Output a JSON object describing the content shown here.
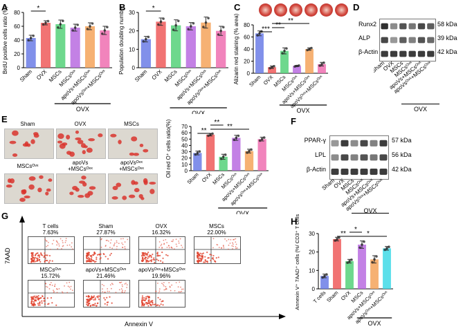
{
  "panel_labels": {
    "A": "A",
    "B": "B",
    "C": "C",
    "D": "D",
    "E": "E",
    "F": "F",
    "G": "G",
    "H": "H"
  },
  "groups_full": [
    "Sham",
    "OVX",
    "MSCs",
    "MSCsᴼᵛˣ",
    "apoVs+MSCsᴼᵛˣ",
    "apoVsᴼᵛˣ+MSCsᴼᵛˣ"
  ],
  "ovx_label": "OVX",
  "colors": {
    "sham": "#6b7de6",
    "ovx": "#ee5a5a",
    "mscs": "#55d179",
    "mscs_ovx": "#b96be0",
    "apovs_mscs_ovx": "#f5a35a",
    "apovs_ovx_mscs_ovx": "#ee6fb0",
    "tcells": "#6b7de6",
    "h_last": "#3fd9e6"
  },
  "chart_data": [
    {
      "id": "A",
      "type": "bar",
      "ylabel": "BrdU positive cells ratio (%)",
      "ylim": [
        0,
        80
      ],
      "yticks": [
        "0",
        "20",
        "40",
        "60",
        "80"
      ],
      "categories": [
        "Sham",
        "OVX",
        "MSCs",
        "MSCsᴼᵛˣ",
        "apoVs+MSCsᴼᵛˣ",
        "apoVsᴼᵛˣ+MSCsᴼᵛˣ"
      ],
      "values": [
        43,
        65,
        63,
        58,
        60,
        54
      ],
      "errors": [
        4,
        3,
        6,
        5,
        5,
        6
      ],
      "sig": [
        {
          "from": 0,
          "to": 1,
          "label": "*"
        }
      ],
      "ovx_line_from": 2
    },
    {
      "id": "B",
      "type": "bar",
      "ylabel": "Population doubling number",
      "ylim": [
        0,
        30
      ],
      "yticks": [
        "0",
        "10",
        "20",
        "30"
      ],
      "categories": [
        "Sham",
        "OVX",
        "MSCs",
        "MSCsᴼᵛˣ",
        "apoVs+MSCsᴼᵛˣ",
        "apoVsᴼᵛˣ+MSCsᴼᵛˣ"
      ],
      "values": [
        15.5,
        25,
        23,
        22.5,
        24.5,
        20
      ],
      "errors": [
        1.5,
        2,
        3,
        2,
        3,
        2.5
      ],
      "sig": [
        {
          "from": 0,
          "to": 1,
          "label": "*"
        }
      ],
      "ovx_line_from": 2
    },
    {
      "id": "C",
      "type": "bar",
      "ylabel": "Alizarin red staining (% area)",
      "ylim": [
        0,
        80
      ],
      "yticks": [
        "0",
        "20",
        "40",
        "60",
        "80"
      ],
      "categories": [
        "Sham",
        "OVX",
        "MSCs",
        "MSCsᴼᵛˣ",
        "apoVs+MSCsᴼᵛˣ",
        "apoVsᴼᵛˣ+MSCsᴼᵛˣ"
      ],
      "values": [
        66,
        10,
        37,
        12,
        40,
        15
      ],
      "errors": [
        4,
        2,
        5,
        1,
        2,
        3
      ],
      "sig": [
        {
          "from": 0,
          "to": 1,
          "label": "***",
          "tier": 2
        },
        {
          "from": 1,
          "to": 2,
          "label": "**",
          "tier": 1
        },
        {
          "from": 1,
          "to": 4,
          "label": "**",
          "tier": 0
        }
      ],
      "ovx_line_from": 2
    },
    {
      "id": "E",
      "type": "bar",
      "ylabel": "Oil red O⁺ cells ratio(%)",
      "ylim": [
        0,
        70
      ],
      "yticks": [
        "0",
        "10",
        "20",
        "30",
        "40",
        "50",
        "60",
        "70"
      ],
      "categories": [
        "Sham",
        "OVX",
        "MSCs",
        "MSCsᴼᵛˣ",
        "apoVs+MSCsᴼᵛˣ",
        "apoVsᴼᵛˣ+MSCsᴼᵛˣ"
      ],
      "values": [
        28,
        57,
        22,
        52,
        31,
        50
      ],
      "errors": [
        3,
        2,
        4,
        4,
        3,
        3
      ],
      "sig": [
        {
          "from": 0,
          "to": 1,
          "label": "**",
          "tier": 2
        },
        {
          "from": 1,
          "to": 2,
          "label": "**",
          "tier": 0
        },
        {
          "from": 1,
          "to": 4,
          "label": "**",
          "tier": 1
        }
      ],
      "ovx_line_from": 2
    },
    {
      "id": "H",
      "type": "bar",
      "ylabel": "Annexin V⁺ 7AAD⁺ cells (%/ CD3⁺ T cells)",
      "ylim": [
        0,
        30
      ],
      "yticks": [
        "0",
        "10",
        "20",
        "30"
      ],
      "categories": [
        "T cells",
        "Sham",
        "OVX",
        "MSCs",
        "apoVs+MSCsᴼᵛˣ",
        "apoVsᴼᵛˣ+MSCsᴼᵛˣ"
      ],
      "values": [
        7,
        27,
        15,
        24,
        16,
        22
      ],
      "errors": [
        1,
        1,
        1,
        2,
        2,
        1
      ],
      "sig": [
        {
          "from": 1,
          "to": 2,
          "label": "**",
          "tier": 1
        },
        {
          "from": 2,
          "to": 3,
          "label": "*",
          "tier": 0
        },
        {
          "from": 2,
          "to": 5,
          "label": "*",
          "tier": 1
        }
      ],
      "ovx_line_from": 3
    }
  ],
  "panel_D": {
    "bands": [
      "Runx2",
      "ALP",
      "β-Actin"
    ],
    "sizes": [
      "58 kDa",
      "39 kDa",
      "42 kDa"
    ],
    "lanes": [
      "Sham",
      "OVX",
      "MSCs",
      "MSCsᴼᵛˣ",
      "apoVs+MSCsᴼᵛˣ",
      "apoVsᴼᵛˣ+MSCsᴼᵛˣ"
    ],
    "ovx_label": "OVX"
  },
  "panel_F": {
    "bands": [
      "PPAR-γ",
      "LPL",
      "β-Actin"
    ],
    "sizes": [
      "57 kDa",
      "56 kDa",
      "42 kDa"
    ],
    "lanes": [
      "Sham",
      "OVX",
      "MSCs",
      "MSCsᴼᵛˣ",
      "apoVs+MSCsᴼᵛˣ",
      "apoVsᴼᵛˣ+MSCsᴼᵛˣ"
    ],
    "ovx_label": "OVX"
  },
  "panel_E_images": {
    "row1": [
      "Sham",
      "OVX",
      "MSCs"
    ],
    "row2": [
      "MSCsᴼᵛˣ",
      "apoVs\n+MSCsᴼᵛˣ",
      "apoVsᴼᵛˣ\n+MSCsᴼᵛˣ"
    ]
  },
  "panel_G": {
    "xlabel": "Annexin V",
    "ylabel": "7AAD",
    "plots": [
      {
        "label": "T cells",
        "value": "7.63%"
      },
      {
        "label": "Sham",
        "value": "27.87%"
      },
      {
        "label": "OVX",
        "value": "16.32%"
      },
      {
        "label": "MSCs",
        "value": "22.00%"
      },
      {
        "label": "MSCsᴼᵛˣ",
        "value": "15.72%"
      },
      {
        "label": "apoVs+MSCsᴼᵛˣ",
        "value": "21.46%"
      },
      {
        "label": "apoVsᴼᵛˣ+MSCsᴼᵛˣ",
        "value": "19.96%"
      }
    ]
  }
}
